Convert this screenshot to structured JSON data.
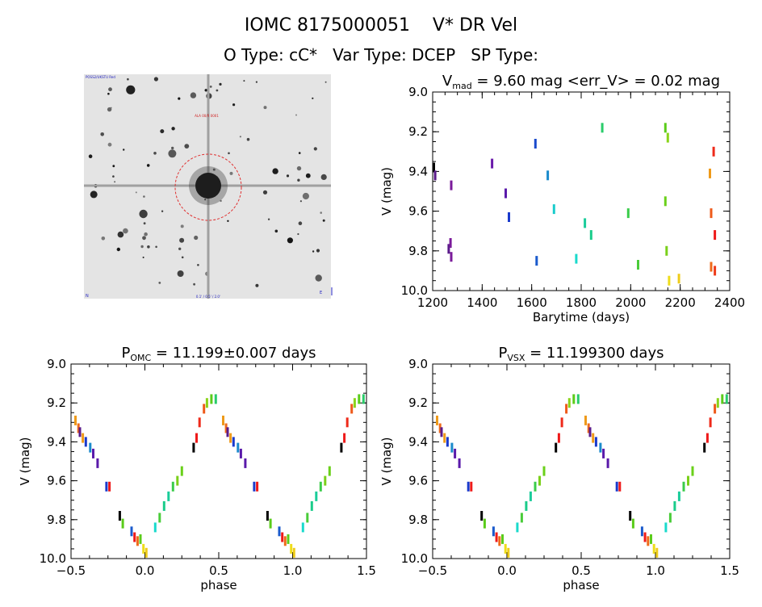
{
  "header": {
    "title": "IOMC 8175000051    V* DR Vel",
    "subtitle": "O Type: cC*   Var Type: DCEP   SP Type:"
  },
  "image_panel": {
    "corner_tl": "POSS2/UKSTU Red",
    "label_top": "ALA 00/R 0001",
    "label_bottom": "0.1' / 0.5' / 2.0'",
    "corner_bl": "N",
    "corner_br": "E"
  },
  "chart_data": [
    {
      "type": "scatter",
      "id": "lightcurve",
      "title": "V_mad = 9.60 mag <err_V> = 0.02 mag",
      "title_parts": {
        "main": "V",
        "sub": "mad",
        "rest": " = 9.60 mag <err_V> = 0.02 mag"
      },
      "xlabel": "Barytime (days)",
      "ylabel": "V (mag)",
      "xlim": [
        1200,
        2400
      ],
      "ylim": [
        10.0,
        9.0
      ],
      "y_inverted": true,
      "xticks": [
        "1200",
        "1400",
        "1600",
        "1800",
        "2000",
        "2200",
        "2400"
      ],
      "yticks": [
        "9.0",
        "9.2",
        "9.4",
        "9.6",
        "9.8",
        "10.0"
      ],
      "points": [
        {
          "x": 1205,
          "y": 9.38,
          "c": "#000000"
        },
        {
          "x": 1210,
          "y": 9.42,
          "c": "#5a1a8a"
        },
        {
          "x": 1265,
          "y": 9.79,
          "c": "#5a1a8a"
        },
        {
          "x": 1272,
          "y": 9.76,
          "c": "#7a1a9a"
        },
        {
          "x": 1275,
          "y": 9.47,
          "c": "#7a1a9a"
        },
        {
          "x": 1275,
          "y": 9.83,
          "c": "#7a1a9a"
        },
        {
          "x": 1440,
          "y": 9.36,
          "c": "#6a1aaa"
        },
        {
          "x": 1495,
          "y": 9.51,
          "c": "#5a1aaa"
        },
        {
          "x": 1508,
          "y": 9.63,
          "c": "#1a3acc"
        },
        {
          "x": 1615,
          "y": 9.26,
          "c": "#1a4acc"
        },
        {
          "x": 1620,
          "y": 9.85,
          "c": "#1a5acc"
        },
        {
          "x": 1665,
          "y": 9.42,
          "c": "#1a8acc"
        },
        {
          "x": 1690,
          "y": 9.59,
          "c": "#1acccc"
        },
        {
          "x": 1780,
          "y": 9.84,
          "c": "#1adacc"
        },
        {
          "x": 1815,
          "y": 9.66,
          "c": "#1acc9a"
        },
        {
          "x": 1840,
          "y": 9.72,
          "c": "#1acc8a"
        },
        {
          "x": 1885,
          "y": 9.18,
          "c": "#2acc6a"
        },
        {
          "x": 1990,
          "y": 9.61,
          "c": "#3acc4a"
        },
        {
          "x": 2030,
          "y": 9.87,
          "c": "#4acc3a"
        },
        {
          "x": 2140,
          "y": 9.18,
          "c": "#5acc1a"
        },
        {
          "x": 2140,
          "y": 9.55,
          "c": "#6ad01a"
        },
        {
          "x": 2145,
          "y": 9.8,
          "c": "#7ad01a"
        },
        {
          "x": 2150,
          "y": 9.23,
          "c": "#8ad41a"
        },
        {
          "x": 2155,
          "y": 9.95,
          "c": "#eedd1a"
        },
        {
          "x": 2195,
          "y": 9.94,
          "c": "#eecc1a"
        },
        {
          "x": 2320,
          "y": 9.41,
          "c": "#ee9a1a"
        },
        {
          "x": 2325,
          "y": 9.61,
          "c": "#ee5a1a"
        },
        {
          "x": 2325,
          "y": 9.88,
          "c": "#ee6a1a"
        },
        {
          "x": 2335,
          "y": 9.3,
          "c": "#ee2a1a"
        },
        {
          "x": 2340,
          "y": 9.72,
          "c": "#ee1a1a"
        },
        {
          "x": 2340,
          "y": 9.9,
          "c": "#ee3a1a"
        }
      ]
    },
    {
      "type": "scatter",
      "id": "phase_omc",
      "title": "P_OMC = 11.199±0.007 days",
      "title_parts": {
        "main": "P",
        "sub": "OMC",
        "rest": " = 11.199±0.007 days"
      },
      "xlabel": "phase",
      "ylabel": "V (mag)",
      "xlim": [
        -0.5,
        1.5
      ],
      "ylim": [
        10.0,
        9.0
      ],
      "y_inverted": true,
      "xticks": [
        "−0.5",
        "0.0",
        "0.5",
        "1.0",
        "1.5"
      ],
      "yticks": [
        "9.0",
        "9.2",
        "9.4",
        "9.6",
        "9.8",
        "10.0"
      ],
      "points": [
        {
          "x": -0.47,
          "y": 9.29,
          "c": "#ee9a1a"
        },
        {
          "x": -0.45,
          "y": 9.33,
          "c": "#ee6a1a"
        },
        {
          "x": -0.44,
          "y": 9.35,
          "c": "#5a1a8a"
        },
        {
          "x": -0.42,
          "y": 9.38,
          "c": "#ee9a1a"
        },
        {
          "x": -0.4,
          "y": 9.4,
          "c": "#1a3acc"
        },
        {
          "x": -0.37,
          "y": 9.43,
          "c": "#1a8acc"
        },
        {
          "x": -0.35,
          "y": 9.46,
          "c": "#5a1aaa"
        },
        {
          "x": -0.32,
          "y": 9.51,
          "c": "#5a1aaa"
        },
        {
          "x": -0.26,
          "y": 9.63,
          "c": "#1a3acc"
        },
        {
          "x": -0.24,
          "y": 9.63,
          "c": "#ee1a1a"
        },
        {
          "x": -0.17,
          "y": 9.78,
          "c": "#000000"
        },
        {
          "x": -0.15,
          "y": 9.82,
          "c": "#5acc1a"
        },
        {
          "x": -0.09,
          "y": 9.86,
          "c": "#1a5acc"
        },
        {
          "x": -0.07,
          "y": 9.89,
          "c": "#ee1a1a"
        },
        {
          "x": -0.05,
          "y": 9.91,
          "c": "#ee6a1a"
        },
        {
          "x": -0.03,
          "y": 9.9,
          "c": "#5acc1a"
        },
        {
          "x": -0.01,
          "y": 9.95,
          "c": "#eedd1a"
        },
        {
          "x": 0.01,
          "y": 9.97,
          "c": "#eecc1a"
        },
        {
          "x": 0.07,
          "y": 9.84,
          "c": "#1adacc"
        },
        {
          "x": 0.1,
          "y": 9.79,
          "c": "#4acc3a"
        },
        {
          "x": 0.13,
          "y": 9.73,
          "c": "#1acc8a"
        },
        {
          "x": 0.16,
          "y": 9.68,
          "c": "#1acc9a"
        },
        {
          "x": 0.19,
          "y": 9.63,
          "c": "#3acc4a"
        },
        {
          "x": 0.22,
          "y": 9.6,
          "c": "#7ad01a"
        },
        {
          "x": 0.25,
          "y": 9.55,
          "c": "#6ad01a"
        },
        {
          "x": 0.33,
          "y": 9.43,
          "c": "#000000"
        },
        {
          "x": 0.35,
          "y": 9.38,
          "c": "#ee1a1a"
        },
        {
          "x": 0.37,
          "y": 9.3,
          "c": "#ee2a1a"
        },
        {
          "x": 0.4,
          "y": 9.23,
          "c": "#ee5a1a"
        },
        {
          "x": 0.42,
          "y": 9.2,
          "c": "#8ad41a"
        },
        {
          "x": 0.45,
          "y": 9.18,
          "c": "#5acc1a"
        },
        {
          "x": 0.48,
          "y": 9.18,
          "c": "#2acc6a"
        },
        {
          "x": 0.53,
          "y": 9.29,
          "c": "#ee9a1a"
        },
        {
          "x": 0.55,
          "y": 9.33,
          "c": "#ee6a1a"
        },
        {
          "x": 0.56,
          "y": 9.35,
          "c": "#5a1a8a"
        },
        {
          "x": 0.58,
          "y": 9.38,
          "c": "#ee9a1a"
        },
        {
          "x": 0.6,
          "y": 9.4,
          "c": "#1a3acc"
        },
        {
          "x": 0.63,
          "y": 9.43,
          "c": "#1a8acc"
        },
        {
          "x": 0.65,
          "y": 9.46,
          "c": "#5a1aaa"
        },
        {
          "x": 0.68,
          "y": 9.51,
          "c": "#5a1aaa"
        },
        {
          "x": 0.74,
          "y": 9.63,
          "c": "#1a3acc"
        },
        {
          "x": 0.76,
          "y": 9.63,
          "c": "#ee1a1a"
        },
        {
          "x": 0.83,
          "y": 9.78,
          "c": "#000000"
        },
        {
          "x": 0.85,
          "y": 9.82,
          "c": "#5acc1a"
        },
        {
          "x": 0.91,
          "y": 9.86,
          "c": "#1a5acc"
        },
        {
          "x": 0.93,
          "y": 9.89,
          "c": "#ee1a1a"
        },
        {
          "x": 0.95,
          "y": 9.91,
          "c": "#ee6a1a"
        },
        {
          "x": 0.97,
          "y": 9.9,
          "c": "#5acc1a"
        },
        {
          "x": 0.99,
          "y": 9.95,
          "c": "#eedd1a"
        },
        {
          "x": 1.01,
          "y": 9.97,
          "c": "#eecc1a"
        },
        {
          "x": 1.07,
          "y": 9.84,
          "c": "#1adacc"
        },
        {
          "x": 1.1,
          "y": 9.79,
          "c": "#4acc3a"
        },
        {
          "x": 1.13,
          "y": 9.73,
          "c": "#1acc8a"
        },
        {
          "x": 1.16,
          "y": 9.68,
          "c": "#1acc9a"
        },
        {
          "x": 1.19,
          "y": 9.63,
          "c": "#3acc4a"
        },
        {
          "x": 1.22,
          "y": 9.6,
          "c": "#7ad01a"
        },
        {
          "x": 1.25,
          "y": 9.55,
          "c": "#6ad01a"
        },
        {
          "x": 1.33,
          "y": 9.43,
          "c": "#000000"
        },
        {
          "x": 1.35,
          "y": 9.38,
          "c": "#ee1a1a"
        },
        {
          "x": 1.37,
          "y": 9.3,
          "c": "#ee2a1a"
        },
        {
          "x": 1.4,
          "y": 9.23,
          "c": "#ee5a1a"
        },
        {
          "x": 1.42,
          "y": 9.2,
          "c": "#8ad41a"
        },
        {
          "x": 1.45,
          "y": 9.18,
          "c": "#5acc1a"
        },
        {
          "x": 1.48,
          "y": 9.18,
          "c": "#2acc6a"
        }
      ]
    },
    {
      "type": "scatter",
      "id": "phase_vsx",
      "title": "P_VSX = 11.199300 days",
      "title_parts": {
        "main": "P",
        "sub": "VSX",
        "rest": " = 11.199300 days"
      },
      "xlabel": "phase",
      "ylabel": "V (mag)",
      "xlim": [
        -0.5,
        1.5
      ],
      "ylim": [
        10.0,
        9.0
      ],
      "y_inverted": true,
      "xticks": [
        "−0.5",
        "0.0",
        "0.5",
        "1.0",
        "1.5"
      ],
      "yticks": [
        "9.0",
        "9.2",
        "9.4",
        "9.6",
        "9.8",
        "10.0"
      ],
      "points": [
        {
          "x": -0.47,
          "y": 9.29,
          "c": "#ee9a1a"
        },
        {
          "x": -0.45,
          "y": 9.33,
          "c": "#ee6a1a"
        },
        {
          "x": -0.44,
          "y": 9.35,
          "c": "#5a1a8a"
        },
        {
          "x": -0.42,
          "y": 9.38,
          "c": "#ee9a1a"
        },
        {
          "x": -0.4,
          "y": 9.4,
          "c": "#1a3acc"
        },
        {
          "x": -0.37,
          "y": 9.43,
          "c": "#1a8acc"
        },
        {
          "x": -0.35,
          "y": 9.46,
          "c": "#5a1aaa"
        },
        {
          "x": -0.32,
          "y": 9.51,
          "c": "#5a1aaa"
        },
        {
          "x": -0.26,
          "y": 9.63,
          "c": "#1a3acc"
        },
        {
          "x": -0.24,
          "y": 9.63,
          "c": "#ee1a1a"
        },
        {
          "x": -0.17,
          "y": 9.78,
          "c": "#000000"
        },
        {
          "x": -0.15,
          "y": 9.82,
          "c": "#5acc1a"
        },
        {
          "x": -0.09,
          "y": 9.86,
          "c": "#1a5acc"
        },
        {
          "x": -0.07,
          "y": 9.89,
          "c": "#ee1a1a"
        },
        {
          "x": -0.05,
          "y": 9.91,
          "c": "#ee6a1a"
        },
        {
          "x": -0.03,
          "y": 9.9,
          "c": "#5acc1a"
        },
        {
          "x": -0.01,
          "y": 9.95,
          "c": "#eedd1a"
        },
        {
          "x": 0.01,
          "y": 9.97,
          "c": "#eecc1a"
        },
        {
          "x": 0.07,
          "y": 9.84,
          "c": "#1adacc"
        },
        {
          "x": 0.1,
          "y": 9.79,
          "c": "#4acc3a"
        },
        {
          "x": 0.13,
          "y": 9.73,
          "c": "#1acc8a"
        },
        {
          "x": 0.16,
          "y": 9.68,
          "c": "#1acc9a"
        },
        {
          "x": 0.19,
          "y": 9.63,
          "c": "#3acc4a"
        },
        {
          "x": 0.22,
          "y": 9.6,
          "c": "#7ad01a"
        },
        {
          "x": 0.25,
          "y": 9.55,
          "c": "#6ad01a"
        },
        {
          "x": 0.33,
          "y": 9.43,
          "c": "#000000"
        },
        {
          "x": 0.35,
          "y": 9.38,
          "c": "#ee1a1a"
        },
        {
          "x": 0.37,
          "y": 9.3,
          "c": "#ee2a1a"
        },
        {
          "x": 0.4,
          "y": 9.23,
          "c": "#ee5a1a"
        },
        {
          "x": 0.42,
          "y": 9.2,
          "c": "#8ad41a"
        },
        {
          "x": 0.45,
          "y": 9.18,
          "c": "#5acc1a"
        },
        {
          "x": 0.48,
          "y": 9.18,
          "c": "#2acc6a"
        },
        {
          "x": 0.53,
          "y": 9.29,
          "c": "#ee9a1a"
        },
        {
          "x": 0.55,
          "y": 9.33,
          "c": "#ee6a1a"
        },
        {
          "x": 0.56,
          "y": 9.35,
          "c": "#5a1a8a"
        },
        {
          "x": 0.58,
          "y": 9.38,
          "c": "#ee9a1a"
        },
        {
          "x": 0.6,
          "y": 9.4,
          "c": "#1a3acc"
        },
        {
          "x": 0.63,
          "y": 9.43,
          "c": "#1a8acc"
        },
        {
          "x": 0.65,
          "y": 9.46,
          "c": "#5a1aaa"
        },
        {
          "x": 0.68,
          "y": 9.51,
          "c": "#5a1aaa"
        },
        {
          "x": 0.74,
          "y": 9.63,
          "c": "#1a3acc"
        },
        {
          "x": 0.76,
          "y": 9.63,
          "c": "#ee1a1a"
        },
        {
          "x": 0.83,
          "y": 9.78,
          "c": "#000000"
        },
        {
          "x": 0.85,
          "y": 9.82,
          "c": "#5acc1a"
        },
        {
          "x": 0.91,
          "y": 9.86,
          "c": "#1a5acc"
        },
        {
          "x": 0.93,
          "y": 9.89,
          "c": "#ee1a1a"
        },
        {
          "x": 0.95,
          "y": 9.91,
          "c": "#ee6a1a"
        },
        {
          "x": 0.97,
          "y": 9.9,
          "c": "#5acc1a"
        },
        {
          "x": 0.99,
          "y": 9.95,
          "c": "#eedd1a"
        },
        {
          "x": 1.01,
          "y": 9.97,
          "c": "#eecc1a"
        },
        {
          "x": 1.07,
          "y": 9.84,
          "c": "#1adacc"
        },
        {
          "x": 1.1,
          "y": 9.79,
          "c": "#4acc3a"
        },
        {
          "x": 1.13,
          "y": 9.73,
          "c": "#1acc8a"
        },
        {
          "x": 1.16,
          "y": 9.68,
          "c": "#1acc9a"
        },
        {
          "x": 1.19,
          "y": 9.63,
          "c": "#3acc4a"
        },
        {
          "x": 1.22,
          "y": 9.6,
          "c": "#7ad01a"
        },
        {
          "x": 1.25,
          "y": 9.55,
          "c": "#6ad01a"
        },
        {
          "x": 1.33,
          "y": 9.43,
          "c": "#000000"
        },
        {
          "x": 1.35,
          "y": 9.38,
          "c": "#ee1a1a"
        },
        {
          "x": 1.37,
          "y": 9.3,
          "c": "#ee2a1a"
        },
        {
          "x": 1.4,
          "y": 9.23,
          "c": "#ee5a1a"
        },
        {
          "x": 1.42,
          "y": 9.2,
          "c": "#8ad41a"
        },
        {
          "x": 1.45,
          "y": 9.18,
          "c": "#5acc1a"
        },
        {
          "x": 1.48,
          "y": 9.18,
          "c": "#2acc6a"
        }
      ]
    }
  ]
}
